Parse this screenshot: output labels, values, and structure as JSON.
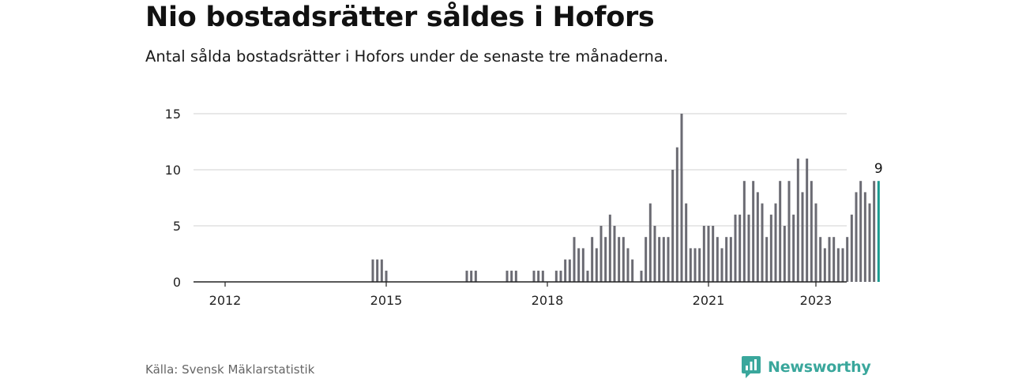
{
  "title": "Nio bostadsrätter såldes i Hofors",
  "subtitle": "Antal sålda bostadsrätter i Hofors under de senaste tre månaderna.",
  "source": "Källa: Svensk Mäklarstatistik",
  "brand": {
    "name": "Newsworthy",
    "icon": "newsworthy-logo-icon",
    "color": "#3aa79c"
  },
  "colors": {
    "bar": "#6b6b73",
    "highlight": "#1a9a90",
    "grid": "#d9d9d9",
    "axis": "#222222"
  },
  "chart_data": {
    "type": "bar",
    "title": "",
    "xlabel": "",
    "ylabel": "",
    "ylim": [
      0,
      15
    ],
    "yticks": [
      0,
      5,
      10,
      15
    ],
    "xticks": [
      "2012",
      "2015",
      "2018",
      "2021",
      "2023"
    ],
    "x_start": "2012-01",
    "grid": true,
    "highlight_label": "9",
    "series": [
      {
        "values": [
          0,
          0,
          0,
          0,
          0,
          0,
          0,
          0,
          0,
          0,
          0,
          0,
          0,
          0,
          0,
          0,
          0,
          0,
          0,
          0,
          0,
          0,
          0,
          0,
          0,
          0,
          0,
          0,
          0,
          0,
          0,
          0,
          0,
          2,
          2,
          2,
          1,
          0,
          0,
          0,
          0,
          0,
          0,
          0,
          0,
          0,
          0,
          0,
          0,
          0,
          0,
          0,
          0,
          0,
          1,
          1,
          1,
          0,
          0,
          0,
          0,
          0,
          0,
          1,
          1,
          1,
          0,
          0,
          0,
          1,
          1,
          1,
          0,
          0,
          1,
          1,
          2,
          2,
          4,
          3,
          3,
          1,
          4,
          3,
          5,
          4,
          6,
          5,
          4,
          4,
          3,
          2,
          0,
          1,
          4,
          7,
          5,
          4,
          4,
          4,
          10,
          12,
          15,
          7,
          3,
          3,
          3,
          5,
          5,
          5,
          4,
          3,
          4,
          4,
          6,
          6,
          9,
          6,
          9,
          8,
          7,
          4,
          6,
          7,
          9,
          5,
          9,
          6,
          11,
          8,
          11,
          9,
          7,
          4,
          3,
          4,
          4,
          3,
          3,
          4,
          6,
          8,
          9,
          8,
          7,
          9,
          9
        ]
      }
    ]
  }
}
